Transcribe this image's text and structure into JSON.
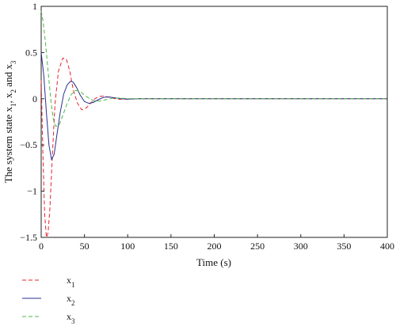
{
  "chart_data": {
    "type": "line",
    "xlabel": "Time (s)",
    "ylabel": {
      "parts": [
        {
          "text": "The system state x",
          "sub": false
        },
        {
          "text": "1",
          "sub": true
        },
        {
          "text": ", x",
          "sub": false
        },
        {
          "text": "2",
          "sub": true
        },
        {
          "text": " and x",
          "sub": false
        },
        {
          "text": "3",
          "sub": true
        }
      ]
    },
    "xlim": [
      0,
      400
    ],
    "ylim": [
      -1.5,
      1
    ],
    "xticks": [
      0,
      50,
      100,
      150,
      200,
      250,
      300,
      350,
      400
    ],
    "yticks": [
      1,
      0.5,
      0,
      -0.5,
      -1,
      -1.5
    ],
    "ytick_labels": [
      "1",
      "0.5",
      "0",
      "−0.5",
      "−1",
      "−1.5"
    ],
    "grid": false,
    "legend_position": "below",
    "series": [
      {
        "name": "x",
        "sub": "1",
        "color": "#e8242c",
        "dash": "dashed",
        "x": [
          0,
          2,
          4,
          6,
          8,
          10,
          13,
          16,
          20,
          25,
          29,
          33,
          37,
          42,
          47,
          52,
          57,
          62,
          67,
          72,
          77,
          82,
          90,
          100,
          110,
          125,
          400
        ],
        "y": [
          0.2,
          -0.6,
          -1.25,
          -1.5,
          -1.45,
          -1.2,
          -0.6,
          -0.05,
          0.3,
          0.44,
          0.43,
          0.3,
          0.1,
          -0.05,
          -0.12,
          -0.1,
          -0.05,
          0.0,
          0.025,
          0.03,
          0.02,
          0.008,
          -0.005,
          -0.005,
          0.0,
          0.0,
          0.0
        ]
      },
      {
        "name": "x",
        "sub": "2",
        "color": "#2b2f8f",
        "dash": "solid",
        "x": [
          0,
          3,
          6,
          9,
          12,
          15,
          18,
          22,
          26,
          30,
          34,
          37,
          41,
          45,
          50,
          55,
          60,
          66,
          72,
          78,
          85,
          92,
          100,
          115,
          400
        ],
        "y": [
          0.5,
          0.25,
          -0.15,
          -0.5,
          -0.66,
          -0.6,
          -0.4,
          -0.15,
          0.05,
          0.15,
          0.19,
          0.18,
          0.12,
          0.04,
          -0.03,
          -0.05,
          -0.04,
          -0.01,
          0.015,
          0.02,
          0.01,
          0.0,
          -0.003,
          0.0,
          0.0
        ]
      },
      {
        "name": "x",
        "sub": "3",
        "color": "#4db848",
        "dash": "dashed",
        "x": [
          0,
          2,
          5,
          8,
          11,
          14,
          17,
          21,
          25,
          30,
          35,
          40,
          45,
          50,
          56,
          62,
          68,
          75,
          82,
          90,
          100,
          115,
          400
        ],
        "y": [
          0.95,
          0.85,
          0.6,
          0.3,
          0.0,
          -0.22,
          -0.3,
          -0.28,
          -0.18,
          -0.05,
          0.05,
          0.09,
          0.08,
          0.04,
          0.0,
          -0.025,
          -0.025,
          -0.01,
          0.005,
          0.008,
          0.002,
          0.0,
          0.0
        ]
      }
    ]
  }
}
